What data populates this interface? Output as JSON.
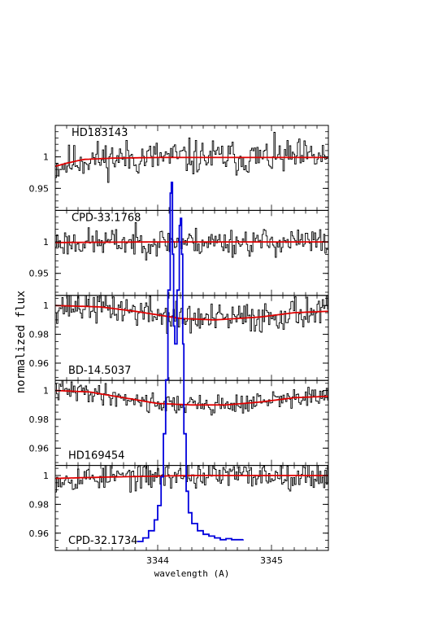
{
  "chart_data": {
    "type": "line",
    "ylabel": "normalized flux",
    "xlabel": "wavelength (A)",
    "xlim": [
      3343.1,
      3345.5
    ],
    "xticks": [
      "3344",
      "3345"
    ],
    "colors": {
      "spectrum": "#000000",
      "model": "#e00000",
      "overlay": "#0000dd"
    },
    "panels": [
      {
        "star": "HD183143",
        "ylim": [
          0.915,
          1.05
        ],
        "yticks": [
          "1",
          "0.95"
        ],
        "seed": 11,
        "noise": 0.028,
        "model": {
          "x": [
            3343.1,
            3343.2,
            3343.35,
            3343.6,
            3344.0,
            3345.0,
            3345.5
          ],
          "y": [
            0.985,
            0.99,
            0.996,
            0.998,
            0.999,
            0.999,
            0.999
          ]
        }
      },
      {
        "star": "CPD-33.1768",
        "ylim": [
          0.915,
          1.05
        ],
        "yticks": [
          "1",
          "0.95"
        ],
        "seed": 23,
        "noise": 0.022,
        "model": {
          "x": [
            3343.1,
            3344.0,
            3345.5
          ],
          "y": [
            0.999,
            1.0,
            1.0
          ]
        }
      },
      {
        "star": "BD-14.5037",
        "ylim": [
          0.948,
          1.007
        ],
        "yticks": [
          "1",
          "0.98",
          "0.96"
        ],
        "seed": 37,
        "noise": 0.011,
        "model": {
          "x": [
            3343.1,
            3343.5,
            3343.8,
            3344.2,
            3344.5,
            3344.9,
            3345.2,
            3345.5
          ],
          "y": [
            1.0,
            0.999,
            0.996,
            0.991,
            0.99,
            0.992,
            0.995,
            0.996
          ]
        }
      },
      {
        "star": "HD169454",
        "ylim": [
          0.948,
          1.007
        ],
        "yticks": [
          "1",
          "0.98",
          "0.96"
        ],
        "seed": 41,
        "noise": 0.007,
        "model": {
          "x": [
            3343.1,
            3343.4,
            3343.7,
            3344.0,
            3344.3,
            3344.6,
            3344.9,
            3345.2,
            3345.5
          ],
          "y": [
            1.0,
            0.999,
            0.995,
            0.991,
            0.99,
            0.99,
            0.992,
            0.995,
            0.996
          ]
        }
      },
      {
        "star": "CPD-32.1734",
        "ylim": [
          0.948,
          1.007
        ],
        "yticks": [
          "1",
          "0.98",
          "0.96"
        ],
        "seed": 53,
        "noise": 0.009,
        "model": {
          "x": [
            3343.1,
            3343.6,
            3344.3,
            3345.0,
            3345.5
          ],
          "y": [
            0.998,
            0.999,
            1.0,
            1.0,
            1.0
          ]
        }
      }
    ],
    "overlay": {
      "x": [
        3343.82,
        3343.87,
        3343.92,
        3343.97,
        3344.0,
        3344.03,
        3344.05,
        3344.07,
        3344.09,
        3344.11,
        3344.12,
        3344.13,
        3344.14,
        3344.15,
        3344.17,
        3344.19,
        3344.2,
        3344.21,
        3344.22,
        3344.23,
        3344.25,
        3344.27,
        3344.3,
        3344.35,
        3344.4,
        3344.45,
        3344.5,
        3344.55,
        3344.6,
        3344.65,
        3344.75
      ],
      "level": [
        0.0,
        0.01,
        0.03,
        0.06,
        0.1,
        0.18,
        0.3,
        0.45,
        0.7,
        0.97,
        1.0,
        0.8,
        0.6,
        0.55,
        0.7,
        0.88,
        0.9,
        0.8,
        0.55,
        0.3,
        0.14,
        0.08,
        0.05,
        0.03,
        0.02,
        0.015,
        0.01,
        0.005,
        0.008,
        0.005,
        0.006
      ]
    }
  }
}
